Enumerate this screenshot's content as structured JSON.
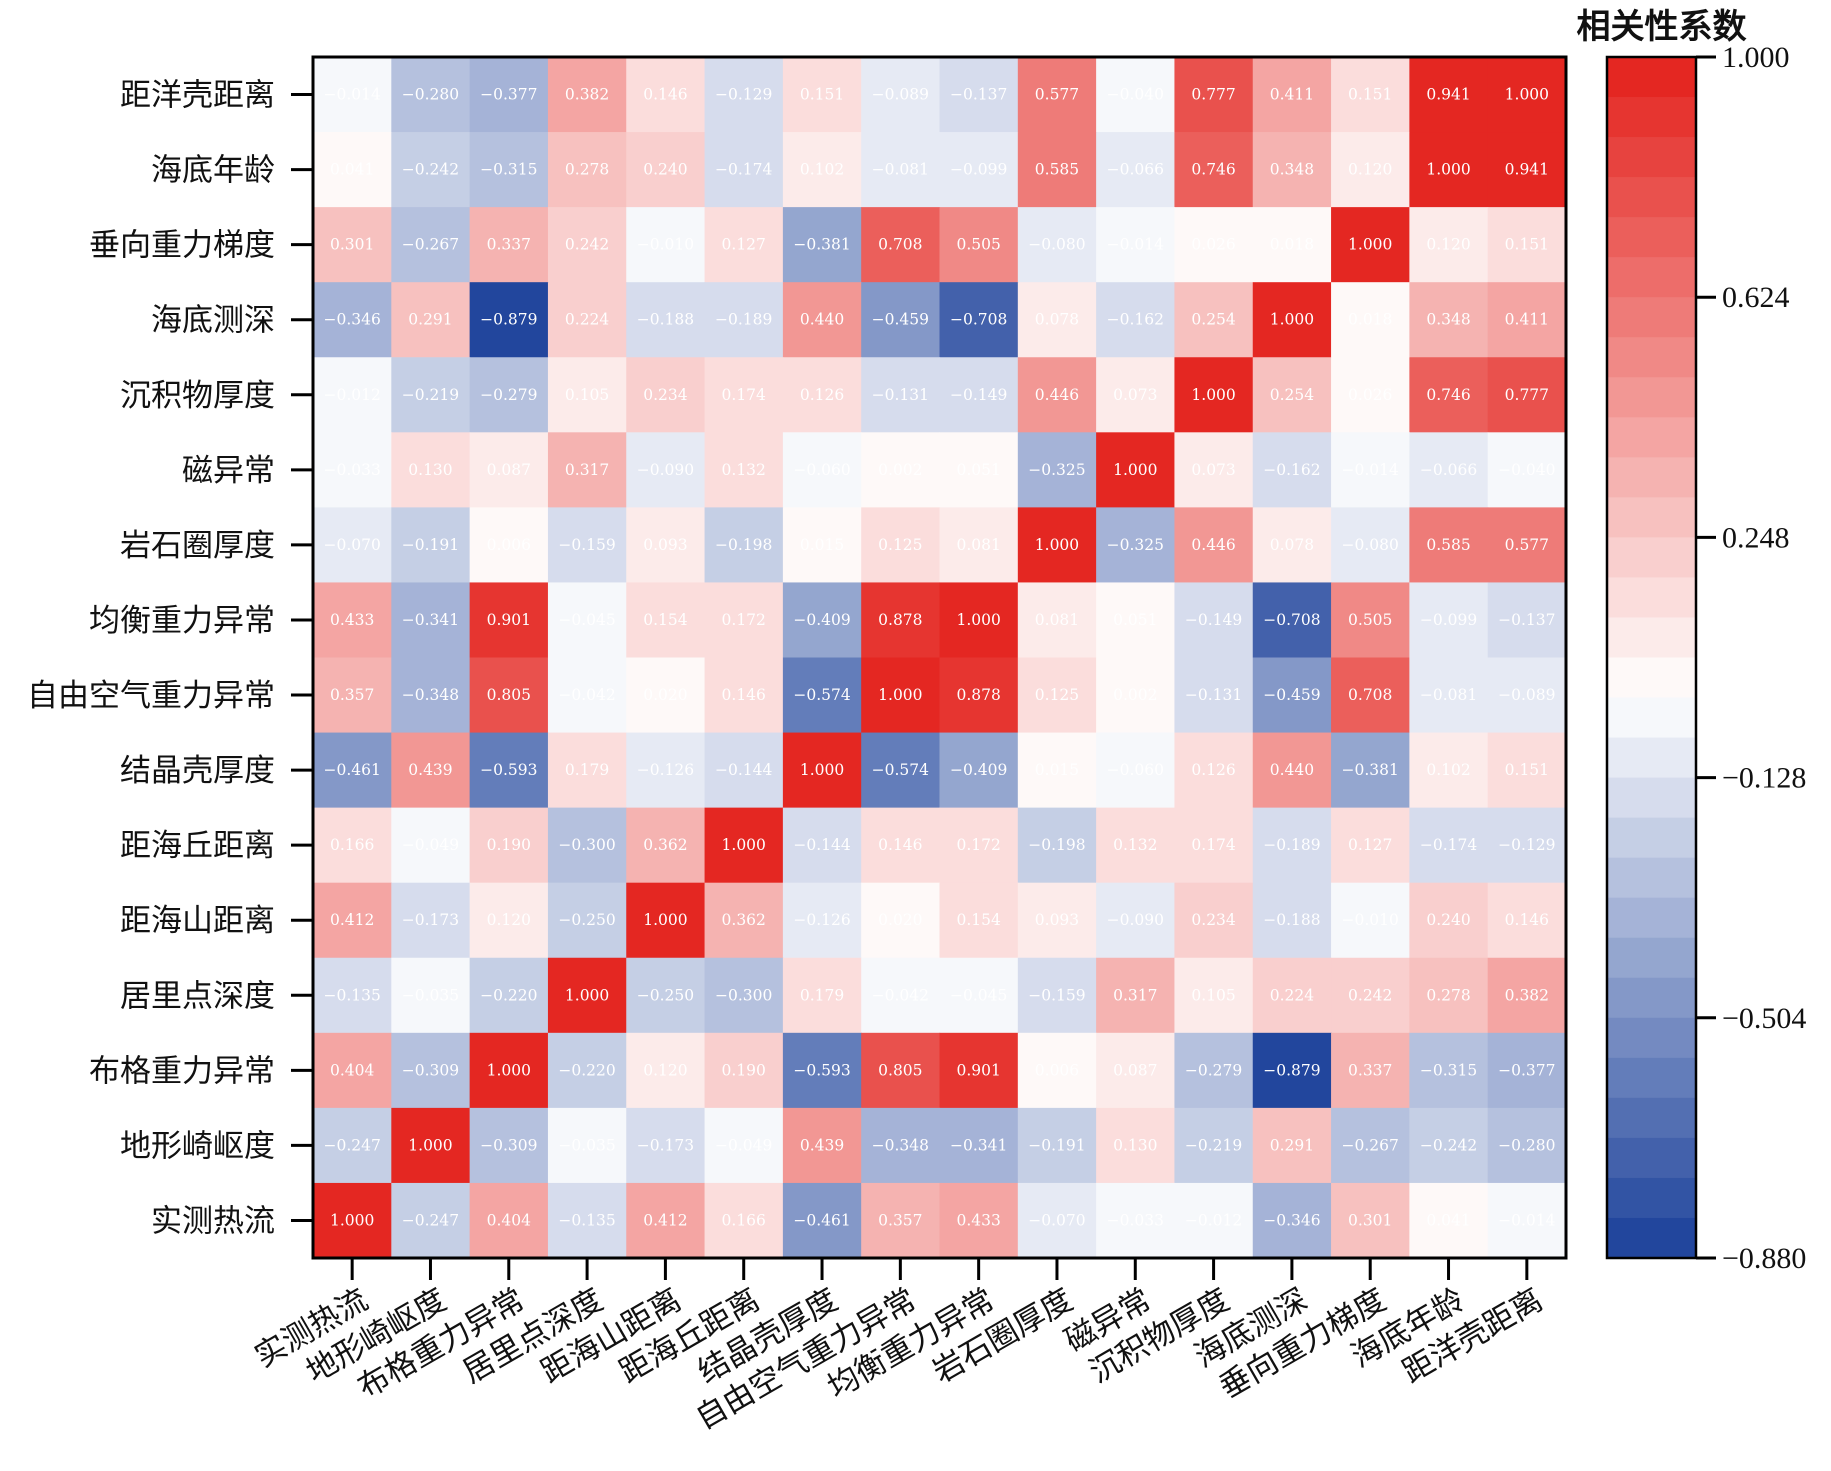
{
  "chart_data": {
    "type": "heatmap",
    "title": "",
    "xlabel": "",
    "ylabel": "",
    "x_categories": [
      "实测热流",
      "地形崎岖度",
      "布格重力异常",
      "居里点深度",
      "距海山距离",
      "距海丘距离",
      "结晶壳厚度",
      "自由空气重力异常",
      "均衡重力异常",
      "岩石圈厚度",
      "磁异常",
      "沉积物厚度",
      "海底测深",
      "垂向重力梯度",
      "海底年龄",
      "距洋壳距离"
    ],
    "y_categories": [
      "距洋壳距离",
      "海底年龄",
      "垂向重力梯度",
      "海底测深",
      "沉积物厚度",
      "磁异常",
      "岩石圈厚度",
      "均衡重力异常",
      "自由空气重力异常",
      "结晶壳厚度",
      "距海丘距离",
      "距海山距离",
      "居里点深度",
      "布格重力异常",
      "地形崎岖度",
      "实测热流"
    ],
    "values": [
      [
        -0.014,
        -0.28,
        -0.377,
        0.382,
        0.146,
        -0.129,
        0.151,
        -0.089,
        -0.137,
        0.577,
        -0.04,
        0.777,
        0.411,
        0.151,
        0.941,
        1.0
      ],
      [
        0.041,
        -0.242,
        -0.315,
        0.278,
        0.24,
        -0.174,
        0.102,
        -0.081,
        -0.099,
        0.585,
        -0.066,
        0.746,
        0.348,
        0.12,
        1.0,
        0.941
      ],
      [
        0.301,
        -0.267,
        0.337,
        0.242,
        -0.01,
        0.127,
        -0.381,
        0.708,
        0.505,
        -0.08,
        -0.014,
        0.026,
        0.018,
        1.0,
        0.12,
        0.151
      ],
      [
        -0.346,
        0.291,
        -0.879,
        0.224,
        -0.188,
        -0.189,
        0.44,
        -0.459,
        -0.708,
        0.078,
        -0.162,
        0.254,
        1.0,
        0.018,
        0.348,
        0.411
      ],
      [
        -0.012,
        -0.219,
        -0.279,
        0.105,
        0.234,
        0.174,
        0.126,
        -0.131,
        -0.149,
        0.446,
        0.073,
        1.0,
        0.254,
        0.026,
        0.746,
        0.777
      ],
      [
        -0.033,
        0.13,
        0.087,
        0.317,
        -0.09,
        0.132,
        -0.06,
        0.002,
        0.051,
        -0.325,
        1.0,
        0.073,
        -0.162,
        -0.014,
        -0.066,
        -0.04
      ],
      [
        -0.07,
        -0.191,
        0.006,
        -0.159,
        0.093,
        -0.198,
        0.015,
        0.125,
        0.081,
        1.0,
        -0.325,
        0.446,
        0.078,
        -0.08,
        0.585,
        0.577
      ],
      [
        0.433,
        -0.341,
        0.901,
        -0.045,
        0.154,
        0.172,
        -0.409,
        0.878,
        1.0,
        0.081,
        0.051,
        -0.149,
        -0.708,
        0.505,
        -0.099,
        -0.137
      ],
      [
        0.357,
        -0.348,
        0.805,
        -0.042,
        0.02,
        0.146,
        -0.574,
        1.0,
        0.878,
        0.125,
        0.002,
        -0.131,
        -0.459,
        0.708,
        -0.081,
        -0.089
      ],
      [
        -0.461,
        0.439,
        -0.593,
        0.179,
        -0.126,
        -0.144,
        1.0,
        -0.574,
        -0.409,
        0.015,
        -0.06,
        0.126,
        0.44,
        -0.381,
        0.102,
        0.151
      ],
      [
        0.166,
        -0.049,
        0.19,
        -0.3,
        0.362,
        1.0,
        -0.144,
        0.146,
        0.172,
        -0.198,
        0.132,
        0.174,
        -0.189,
        0.127,
        -0.174,
        -0.129
      ],
      [
        0.412,
        -0.173,
        0.12,
        -0.25,
        1.0,
        0.362,
        -0.126,
        0.02,
        0.154,
        0.093,
        -0.09,
        0.234,
        -0.188,
        -0.01,
        0.24,
        0.146
      ],
      [
        -0.135,
        -0.035,
        -0.22,
        1.0,
        -0.25,
        -0.3,
        0.179,
        -0.042,
        -0.045,
        -0.159,
        0.317,
        0.105,
        0.224,
        0.242,
        0.278,
        0.382
      ],
      [
        0.404,
        -0.309,
        1.0,
        -0.22,
        0.12,
        0.19,
        -0.593,
        0.805,
        0.901,
        0.006,
        0.087,
        -0.279,
        -0.879,
        0.337,
        -0.315,
        -0.377
      ],
      [
        -0.247,
        1.0,
        -0.309,
        -0.035,
        -0.173,
        -0.049,
        0.439,
        -0.348,
        -0.341,
        -0.191,
        0.13,
        -0.219,
        0.291,
        -0.267,
        -0.242,
        -0.28
      ],
      [
        1.0,
        -0.247,
        0.404,
        -0.135,
        0.412,
        0.166,
        -0.461,
        0.357,
        0.433,
        -0.07,
        -0.033,
        -0.012,
        -0.346,
        0.301,
        0.041,
        -0.014
      ]
    ],
    "value_range": [
      -0.88,
      1.0
    ],
    "colorbar": {
      "title": "相关性系数",
      "ticks": [
        1.0,
        0.624,
        0.248,
        -0.128,
        -0.504,
        -0.88
      ],
      "tick_labels": [
        "1.000",
        "0.624",
        "0.248",
        "−0.128",
        "−0.504",
        "−0.880"
      ],
      "levels": 30,
      "colors": {
        "low": "#1a3f99",
        "mid": "#ffffff",
        "high": "#e3201b"
      },
      "position": "right"
    },
    "grid": false,
    "cell_labels": true
  }
}
